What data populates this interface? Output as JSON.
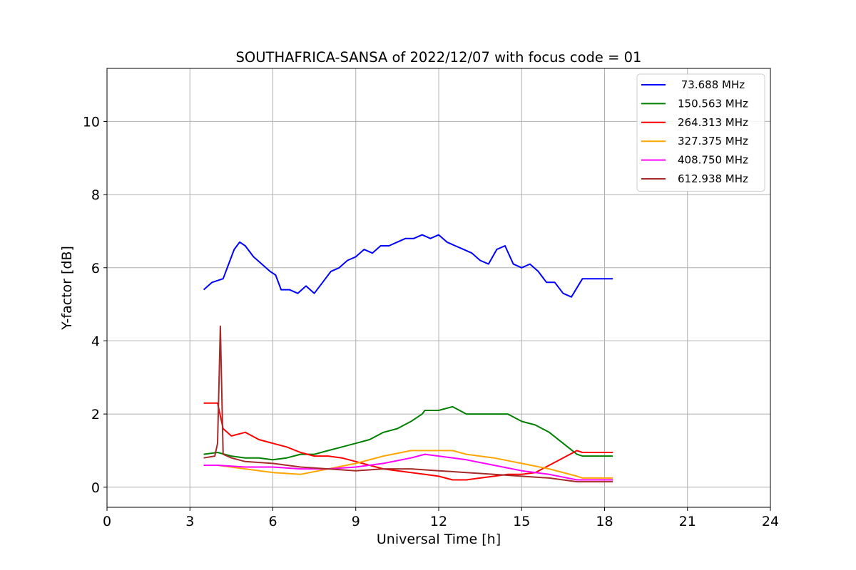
{
  "chart_data": {
    "type": "line",
    "title": "SOUTHAFRICA-SANSA of 2022/12/07 with focus code = 01",
    "xlabel": "Universal Time [h]",
    "ylabel": "Y-factor [dB]",
    "xlim": [
      0,
      24
    ],
    "ylim": [
      -0.55,
      11.45
    ],
    "xticks": [
      0,
      3,
      6,
      9,
      12,
      15,
      18,
      21,
      24
    ],
    "xtick_labels": [
      "0",
      "3",
      "6",
      "9",
      "12",
      "15",
      "18",
      "21",
      "24"
    ],
    "yticks": [
      0,
      2,
      4,
      6,
      8,
      10
    ],
    "ytick_labels": [
      "0",
      "2",
      "4",
      "6",
      "8",
      "10"
    ],
    "grid": true,
    "legend_position": "top-right",
    "series": [
      {
        "name": " 73.688 MHz",
        "color": "#0000ff",
        "x": [
          3.5,
          3.8,
          4.2,
          4.5,
          4.6,
          4.8,
          5.0,
          5.3,
          5.6,
          5.9,
          6.1,
          6.3,
          6.6,
          6.9,
          7.2,
          7.5,
          7.8,
          8.1,
          8.4,
          8.7,
          9.0,
          9.3,
          9.6,
          9.9,
          10.2,
          10.5,
          10.8,
          11.1,
          11.4,
          11.7,
          12.0,
          12.3,
          12.6,
          12.9,
          13.2,
          13.5,
          13.8,
          14.1,
          14.4,
          14.7,
          15.0,
          15.3,
          15.6,
          15.9,
          16.2,
          16.5,
          16.8,
          17.2,
          18.3
        ],
        "y": [
          5.4,
          5.6,
          5.7,
          6.3,
          6.5,
          6.7,
          6.6,
          6.3,
          6.1,
          5.9,
          5.8,
          5.4,
          5.4,
          5.3,
          5.5,
          5.3,
          5.6,
          5.9,
          6.0,
          6.2,
          6.3,
          6.5,
          6.4,
          6.6,
          6.6,
          6.7,
          6.8,
          6.8,
          6.9,
          6.8,
          6.9,
          6.7,
          6.6,
          6.5,
          6.4,
          6.2,
          6.1,
          6.5,
          6.6,
          6.1,
          6.0,
          6.1,
          5.9,
          5.6,
          5.6,
          5.3,
          5.2,
          5.7,
          5.7
        ]
      },
      {
        "name": "150.563 MHz",
        "color": "#008000",
        "x": [
          3.5,
          4.0,
          4.5,
          5.0,
          5.5,
          6.0,
          6.5,
          7.0,
          7.5,
          8.0,
          8.5,
          9.0,
          9.5,
          10.0,
          10.5,
          11.0,
          11.4,
          11.5,
          12.0,
          12.5,
          13.0,
          13.5,
          14.0,
          14.5,
          15.0,
          15.5,
          16.0,
          16.5,
          17.0,
          17.2,
          18.3
        ],
        "y": [
          0.9,
          0.95,
          0.85,
          0.8,
          0.8,
          0.75,
          0.8,
          0.9,
          0.9,
          1.0,
          1.1,
          1.2,
          1.3,
          1.5,
          1.6,
          1.8,
          2.0,
          2.1,
          2.1,
          2.2,
          2.0,
          2.0,
          2.0,
          2.0,
          1.8,
          1.7,
          1.5,
          1.2,
          0.9,
          0.85,
          0.85
        ]
      },
      {
        "name": "264.313 MHz",
        "color": "#ff0000",
        "x": [
          3.5,
          3.8,
          4.0,
          4.2,
          4.5,
          5.0,
          5.5,
          6.0,
          6.5,
          7.0,
          7.5,
          8.0,
          8.5,
          9.0,
          9.5,
          10.0,
          10.5,
          11.0,
          11.5,
          12.0,
          12.5,
          13.0,
          13.5,
          14.0,
          14.5,
          15.0,
          15.5,
          16.0,
          16.5,
          17.0,
          17.2,
          18.3
        ],
        "y": [
          2.3,
          2.3,
          2.3,
          1.6,
          1.4,
          1.5,
          1.3,
          1.2,
          1.1,
          0.95,
          0.85,
          0.85,
          0.8,
          0.7,
          0.6,
          0.5,
          0.45,
          0.4,
          0.35,
          0.3,
          0.2,
          0.2,
          0.25,
          0.3,
          0.35,
          0.35,
          0.4,
          0.6,
          0.8,
          1.0,
          0.95,
          0.95
        ]
      },
      {
        "name": "327.375 MHz",
        "color": "#ffa500",
        "x": [
          3.5,
          4.0,
          5.0,
          6.0,
          7.0,
          8.0,
          9.0,
          10.0,
          11.0,
          12.0,
          12.5,
          13.0,
          14.0,
          15.0,
          16.0,
          17.0,
          17.2,
          18.3
        ],
        "y": [
          0.6,
          0.6,
          0.5,
          0.4,
          0.35,
          0.5,
          0.65,
          0.85,
          1.0,
          1.0,
          1.0,
          0.9,
          0.8,
          0.65,
          0.5,
          0.3,
          0.25,
          0.25
        ]
      },
      {
        "name": "408.750 MHz",
        "color": "#ff00ff",
        "x": [
          3.5,
          4.0,
          5.0,
          6.0,
          7.0,
          8.0,
          9.0,
          10.0,
          11.0,
          11.5,
          12.0,
          13.0,
          14.0,
          15.0,
          16.0,
          17.0,
          17.2,
          18.3
        ],
        "y": [
          0.6,
          0.6,
          0.55,
          0.55,
          0.5,
          0.5,
          0.55,
          0.65,
          0.8,
          0.9,
          0.85,
          0.75,
          0.6,
          0.45,
          0.35,
          0.2,
          0.2,
          0.2
        ]
      },
      {
        "name": "612.938 MHz",
        "color": "#a52a2a",
        "x": [
          3.5,
          3.9,
          4.0,
          4.1,
          4.2,
          4.5,
          5.0,
          6.0,
          7.0,
          8.0,
          9.0,
          10.0,
          11.0,
          12.0,
          13.0,
          14.0,
          15.0,
          16.0,
          17.0,
          17.2,
          18.3
        ],
        "y": [
          0.8,
          0.85,
          1.2,
          4.4,
          0.9,
          0.8,
          0.7,
          0.65,
          0.55,
          0.5,
          0.45,
          0.5,
          0.5,
          0.45,
          0.4,
          0.35,
          0.3,
          0.25,
          0.15,
          0.15,
          0.15
        ]
      }
    ]
  }
}
